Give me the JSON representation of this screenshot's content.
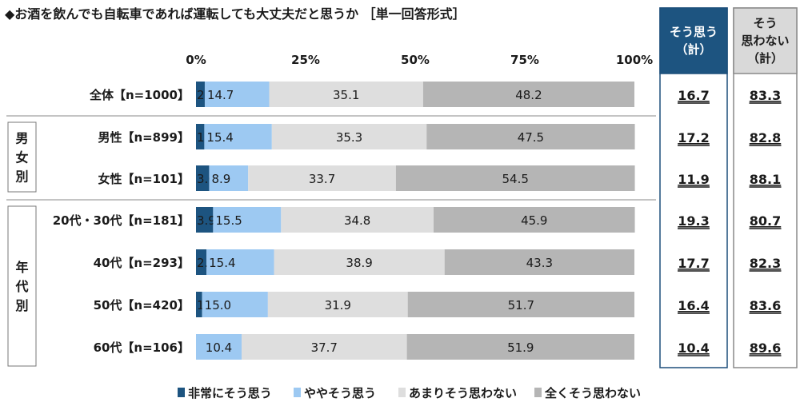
{
  "title": "◆お酒を飲んでも自転車であれば運転しても大丈夫だと思うか ［単一回答形式］",
  "chart_data": {
    "type": "bar",
    "stacked": true,
    "orientation": "horizontal",
    "xlim": [
      0,
      100
    ],
    "x_ticks": [
      "0%",
      "25%",
      "50%",
      "75%",
      "100%"
    ],
    "categories": [
      "全体【n=1000】",
      "男性【n=899】",
      "女性【n=101】",
      "20代・30代【n=181】",
      "40代【n=293】",
      "50代【n=420】",
      "60代【n=106】"
    ],
    "groups": [
      {
        "label": "男女別",
        "rows": [
          1,
          2
        ]
      },
      {
        "label": "年代別",
        "rows": [
          3,
          4,
          5,
          6
        ]
      }
    ],
    "series": [
      {
        "name": "非常にそう思う",
        "color": "#1d5480",
        "label_color": "#ffffff",
        "values": [
          2.0,
          1.9,
          3.0,
          3.9,
          2.4,
          1.4,
          0.0
        ]
      },
      {
        "name": "ややそう思う",
        "color": "#9dc9f2",
        "label_color": "#1a1a1a",
        "values": [
          14.7,
          15.4,
          8.9,
          15.5,
          15.4,
          15.0,
          10.4
        ]
      },
      {
        "name": "あまりそう思わない",
        "color": "#dedede",
        "label_color": "#1a1a1a",
        "values": [
          35.1,
          35.3,
          33.7,
          34.8,
          38.9,
          31.9,
          37.7
        ]
      },
      {
        "name": "全くそう思わない",
        "color": "#b5b5b5",
        "label_color": "#1a1a1a",
        "values": [
          48.2,
          47.5,
          54.5,
          45.9,
          43.3,
          51.7,
          51.9
        ]
      }
    ],
    "data_labels": [
      [
        "2.0",
        "14.7",
        "35.1",
        "48.2"
      ],
      [
        "1.9",
        "15.4",
        "35.3",
        "47.5"
      ],
      [
        "3.0",
        "8.9",
        "33.7",
        "54.5"
      ],
      [
        "3.9",
        "15.5",
        "34.8",
        "45.9"
      ],
      [
        "2.4",
        "15.4",
        "38.9",
        "43.3"
      ],
      [
        "1.4",
        "15.0",
        "31.9",
        "51.7"
      ],
      [
        "",
        "10.4",
        "37.7",
        "51.9"
      ]
    ],
    "summary_columns": [
      {
        "header_lines": [
          "そう思う",
          "（計）"
        ],
        "color": "#1d5480",
        "values": [
          "16.7",
          "17.2",
          "11.9",
          "19.3",
          "17.7",
          "16.4",
          "10.4"
        ]
      },
      {
        "header_lines": [
          "そう",
          "思わない",
          "（計）"
        ],
        "color": "#d9d9d9",
        "values": [
          "83.3",
          "82.8",
          "88.1",
          "80.7",
          "82.3",
          "83.6",
          "89.6"
        ]
      }
    ],
    "legend": {
      "position": "bottom"
    }
  }
}
